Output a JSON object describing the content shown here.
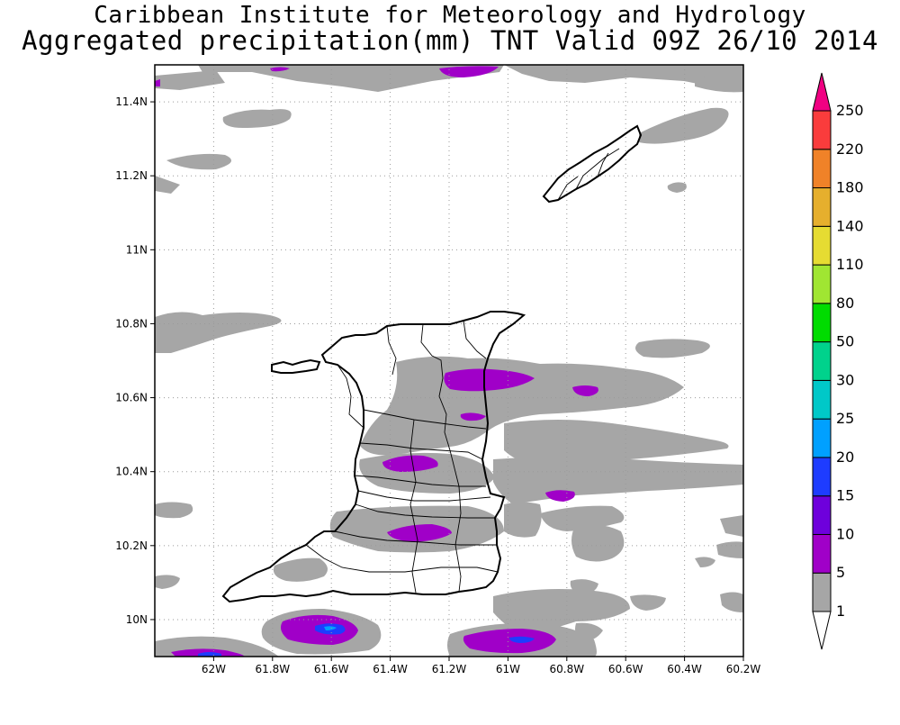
{
  "title": "Caribbean Institute for Meteorology and Hydrology",
  "subtitle": "Aggregated precipitation(mm) TNT Valid 09Z 26/10 2014",
  "map": {
    "region": "Trinidad and Tobago",
    "lon_range": [
      -62.2,
      -60.2
    ],
    "lat_range": [
      9.9,
      11.5
    ],
    "lon_ticks": [
      "62W",
      "61.8W",
      "61.6W",
      "61.4W",
      "61.2W",
      "61W",
      "60.8W",
      "60.6W",
      "60.4W",
      "60.2W"
    ],
    "lat_ticks": [
      "10N",
      "10.2N",
      "10.4N",
      "10.6N",
      "10.8N",
      "11N",
      "11.2N",
      "11.4N"
    ],
    "grid": true
  },
  "legend": {
    "labels": [
      "1",
      "5",
      "10",
      "15",
      "20",
      "25",
      "30",
      "50",
      "80",
      "110",
      "140",
      "180",
      "220",
      "250"
    ],
    "colors": [
      "#ffffff",
      "#a6a6a6",
      "#a000c8",
      "#6e00dc",
      "#1e3cff",
      "#00a0ff",
      "#00c8c8",
      "#00d28c",
      "#00dc00",
      "#a0e632",
      "#e6dc32",
      "#e6af2d",
      "#f08228",
      "#fa3c3c",
      "#f00082"
    ]
  },
  "colors": {
    "land_outline": "#000000",
    "rain_light": "#a6a6a6",
    "rain_moderate": "#a000c8",
    "rain_heavy": "#1e3cff"
  }
}
